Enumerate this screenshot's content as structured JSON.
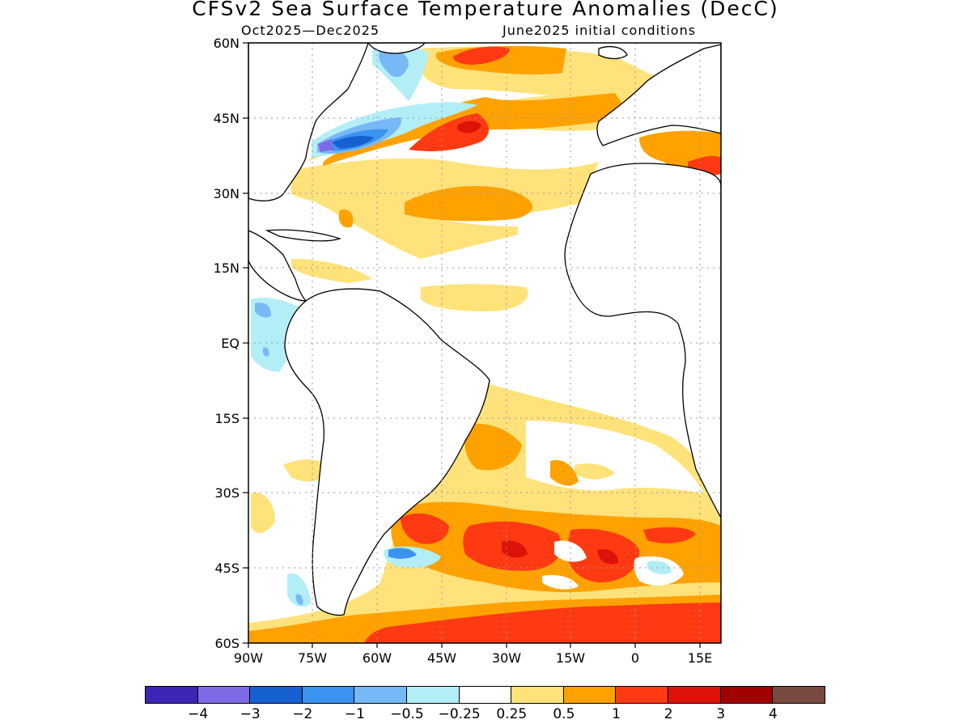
{
  "title": "CFSv2 Sea Surface Temperature Anomalies (DecC)",
  "period": "Oct2025—Dec2025",
  "init": "June2025 initial conditions",
  "lat_labels": [
    "60N",
    "45N",
    "30N",
    "15N",
    "EQ",
    "15S",
    "30S",
    "45S",
    "60S"
  ],
  "lon_labels": [
    "90W",
    "75W",
    "60W",
    "45W",
    "30W",
    "15W",
    "0",
    "15E"
  ],
  "colorbar": {
    "colors": [
      "#3d25b5",
      "#7f6ae6",
      "#1660d2",
      "#3b93f0",
      "#77b8f7",
      "#b3eef7",
      "#ffffff",
      "#ffe27a",
      "#ffa200",
      "#ff3a12",
      "#dd1208",
      "#a00000",
      "#784a3f"
    ],
    "labels": [
      "−4",
      "−3",
      "−2",
      "−1",
      "−0.5",
      "−0.25",
      "0.25",
      "0.5",
      "1",
      "2",
      "3",
      "4"
    ]
  },
  "map_extent": {
    "lon": [
      -90,
      20
    ],
    "lat": [
      -60,
      60
    ]
  }
}
